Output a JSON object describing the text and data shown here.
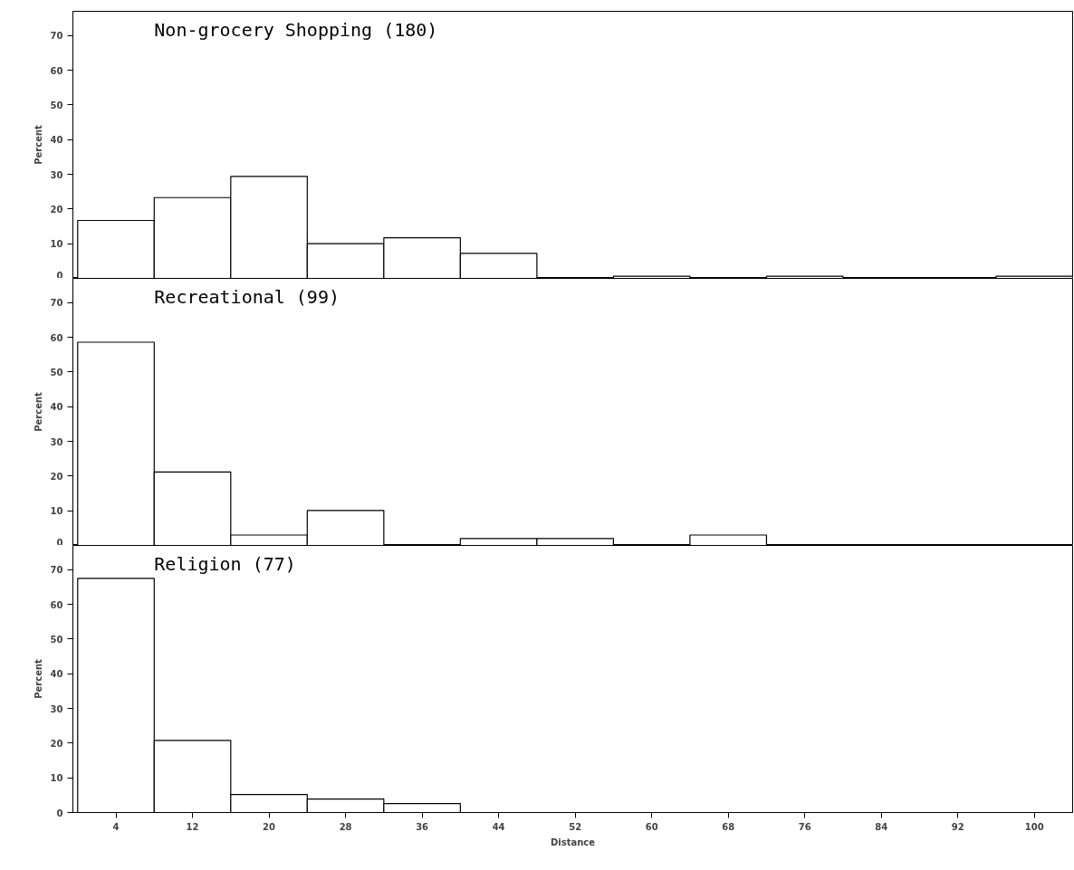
{
  "chart_data": [
    {
      "type": "histogram",
      "title": "Non-grocery Shopping (180)",
      "ylabel": "Percent",
      "bins": [
        0,
        8,
        16,
        24,
        32,
        40,
        48,
        56,
        64,
        72,
        80,
        88,
        96,
        104
      ],
      "values": [
        16.7,
        23.3,
        29.4,
        10,
        11.7,
        7.2,
        0,
        0.6,
        0,
        0.6,
        0,
        0,
        0.6
      ],
      "color": "#ffffff",
      "xlim": [
        -0.5,
        104
      ],
      "xticks": [
        4,
        12,
        20,
        28,
        36,
        44,
        52,
        60,
        68,
        76,
        84,
        92,
        100
      ],
      "ylim": [
        0,
        77
      ],
      "yticks": [
        0,
        10,
        20,
        30,
        40,
        50,
        60,
        70
      ],
      "tick_labels": "y",
      "grid": false
    },
    {
      "type": "histogram",
      "title": "Recreational (99)",
      "ylabel": "Percent",
      "bins": [
        0,
        8,
        16,
        24,
        32,
        40,
        48,
        56,
        64,
        72,
        80,
        88,
        96,
        104
      ],
      "values": [
        58.6,
        21.2,
        3,
        10.1,
        0,
        2,
        2,
        0,
        3,
        0,
        0,
        0,
        0
      ],
      "color": "#ffffff",
      "xlim": [
        -0.5,
        104
      ],
      "xticks": [
        4,
        12,
        20,
        28,
        36,
        44,
        52,
        60,
        68,
        76,
        84,
        92,
        100
      ],
      "ylim": [
        0,
        77
      ],
      "yticks": [
        0,
        10,
        20,
        30,
        40,
        50,
        60,
        70
      ],
      "tick_labels": "y",
      "grid": false
    },
    {
      "type": "histogram",
      "title": "Religion (77)",
      "xlabel": "Distance",
      "ylabel": "Percent",
      "bins": [
        0,
        8,
        16,
        24,
        32,
        40,
        48,
        56,
        64,
        72,
        80,
        88,
        96,
        104
      ],
      "values": [
        67.5,
        20.8,
        5.2,
        3.9,
        2.6,
        0,
        0,
        0,
        0,
        0,
        0,
        0,
        0
      ],
      "color": "#ffffff",
      "xlim": [
        -0.5,
        104
      ],
      "xticks": [
        4,
        12,
        20,
        28,
        36,
        44,
        52,
        60,
        68,
        76,
        84,
        92,
        100
      ],
      "ylim": [
        0,
        77
      ],
      "yticks": [
        0,
        10,
        20,
        30,
        40,
        50,
        60,
        70
      ],
      "grid": false
    }
  ]
}
